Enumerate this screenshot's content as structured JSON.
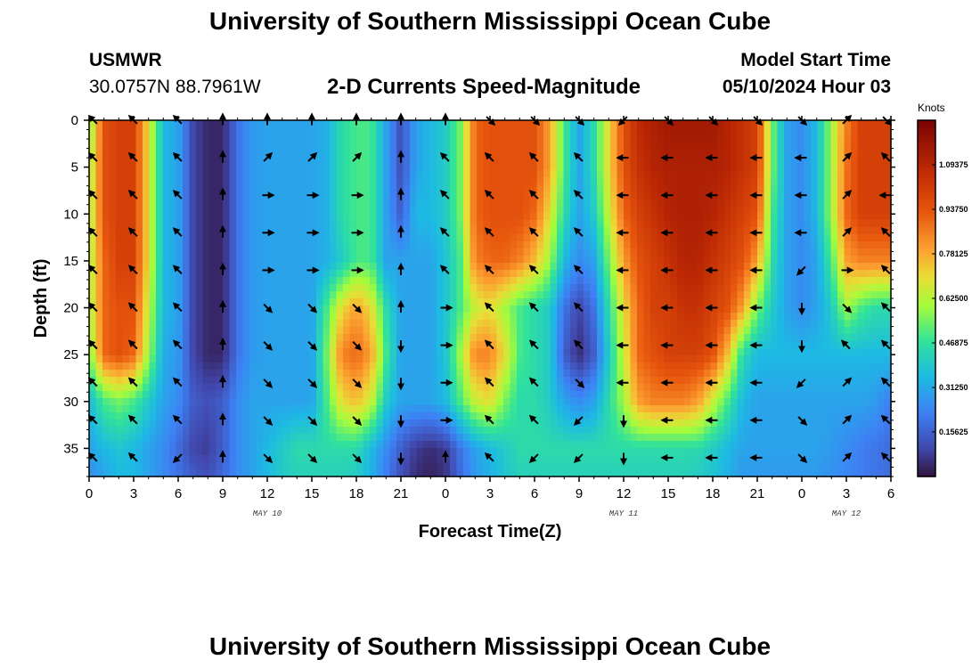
{
  "header": {
    "title": "University of Southern Mississippi Ocean Cube",
    "station": "USMWR",
    "coordinates": "30.0757N  88.7961W",
    "subtitle": "2-D Currents Speed-Magnitude",
    "model_start_label": "Model Start Time",
    "model_start_value": "05/10/2024 Hour 03"
  },
  "footer": {
    "title": "University of Southern Mississippi Ocean Cube"
  },
  "chart_data": {
    "type": "heatmap",
    "title": "2-D Currents Speed-Magnitude",
    "xlabel": "Forecast Time(Z)",
    "ylabel": "Depth (ft)",
    "colorbar_label": "Knots",
    "colorbar_ticks": [
      "0.15625",
      "0.31250",
      "0.46875",
      "0.62500",
      "0.78125",
      "0.93750",
      "1.09375"
    ],
    "colorbar_range": [
      0,
      1.25
    ],
    "xlim": [
      0,
      54
    ],
    "ylim": [
      0,
      38
    ],
    "x_ticks": [
      0,
      3,
      6,
      9,
      12,
      15,
      18,
      21,
      24,
      27,
      30,
      33,
      36,
      39,
      42,
      45,
      48,
      51,
      54
    ],
    "x_tick_labels": [
      "0",
      "3",
      "6",
      "9",
      "12",
      "15",
      "18",
      "21",
      "0",
      "3",
      "6",
      "9",
      "12",
      "15",
      "18",
      "21",
      "0",
      "3",
      "6"
    ],
    "y_ticks": [
      0,
      5,
      10,
      15,
      20,
      25,
      30,
      35
    ],
    "y_tick_labels": [
      "0",
      "5",
      "10",
      "15",
      "20",
      "25",
      "30",
      "35"
    ],
    "date_labels": [
      {
        "x": 12,
        "label": "MAY 10"
      },
      {
        "x": 36,
        "label": "MAY 11"
      },
      {
        "x": 51,
        "label": "MAY 12"
      }
    ],
    "speed_grid": {
      "times": [
        0,
        1,
        2,
        3,
        4,
        5,
        6,
        7,
        8,
        9,
        10,
        11,
        12,
        13,
        14,
        15,
        16,
        17,
        18,
        19,
        20,
        21,
        22,
        23,
        24,
        25,
        26,
        27,
        28,
        29,
        30,
        31,
        32,
        33,
        34,
        35,
        36,
        37,
        38,
        39,
        40,
        41,
        42,
        43,
        44,
        45,
        46,
        47,
        48,
        49,
        50,
        51,
        52,
        53,
        54
      ],
      "depths": [
        0,
        5,
        10,
        15,
        20,
        25,
        30,
        35,
        38
      ],
      "values": [
        [
          0.55,
          0.95,
          1.0,
          1.0,
          0.7,
          0.35,
          0.3,
          0.1,
          0.04,
          0.04,
          0.2,
          0.28,
          0.3,
          0.3,
          0.3,
          0.3,
          0.33,
          0.45,
          0.5,
          0.5,
          0.3,
          0.12,
          0.3,
          0.35,
          0.4,
          0.55,
          0.9,
          0.95,
          0.95,
          0.95,
          0.95,
          0.8,
          0.5,
          0.3,
          0.45,
          0.7,
          0.95,
          1.08,
          1.12,
          1.15,
          1.15,
          1.15,
          1.15,
          1.1,
          1.05,
          1.0,
          0.55,
          0.3,
          0.25,
          0.35,
          0.6,
          0.85,
          1.0,
          1.0,
          1.0
        ],
        [
          0.6,
          0.95,
          1.0,
          1.0,
          0.7,
          0.35,
          0.3,
          0.1,
          0.04,
          0.04,
          0.2,
          0.28,
          0.3,
          0.3,
          0.3,
          0.3,
          0.33,
          0.45,
          0.5,
          0.5,
          0.3,
          0.12,
          0.3,
          0.35,
          0.4,
          0.55,
          0.9,
          0.95,
          0.95,
          0.95,
          0.95,
          0.8,
          0.5,
          0.3,
          0.45,
          0.7,
          0.95,
          1.05,
          1.1,
          1.12,
          1.12,
          1.12,
          1.12,
          1.1,
          1.05,
          1.0,
          0.55,
          0.3,
          0.25,
          0.35,
          0.6,
          0.88,
          1.0,
          1.0,
          1.0
        ],
        [
          0.6,
          0.95,
          1.0,
          1.0,
          0.7,
          0.35,
          0.3,
          0.1,
          0.04,
          0.04,
          0.2,
          0.28,
          0.3,
          0.3,
          0.3,
          0.3,
          0.33,
          0.45,
          0.5,
          0.5,
          0.3,
          0.15,
          0.35,
          0.35,
          0.4,
          0.55,
          0.9,
          0.95,
          0.95,
          0.95,
          0.9,
          0.7,
          0.45,
          0.3,
          0.4,
          0.65,
          0.9,
          1.0,
          1.05,
          1.1,
          1.12,
          1.12,
          1.1,
          1.05,
          1.0,
          0.95,
          0.5,
          0.3,
          0.25,
          0.35,
          0.6,
          0.9,
          1.0,
          1.0,
          1.0
        ],
        [
          0.6,
          0.9,
          1.0,
          1.0,
          0.7,
          0.35,
          0.3,
          0.1,
          0.04,
          0.04,
          0.2,
          0.28,
          0.3,
          0.3,
          0.3,
          0.3,
          0.33,
          0.4,
          0.5,
          0.5,
          0.3,
          0.3,
          0.3,
          0.3,
          0.38,
          0.5,
          0.85,
          0.9,
          0.9,
          0.85,
          0.75,
          0.6,
          0.35,
          0.25,
          0.3,
          0.55,
          0.8,
          0.95,
          1.0,
          1.05,
          1.1,
          1.1,
          1.05,
          1.0,
          0.95,
          0.8,
          0.45,
          0.3,
          0.25,
          0.3,
          0.5,
          0.8,
          0.85,
          0.85,
          0.85
        ],
        [
          0.6,
          0.9,
          0.95,
          0.95,
          0.65,
          0.35,
          0.3,
          0.1,
          0.04,
          0.04,
          0.2,
          0.28,
          0.3,
          0.3,
          0.3,
          0.3,
          0.5,
          0.7,
          0.8,
          0.7,
          0.45,
          0.3,
          0.3,
          0.3,
          0.38,
          0.5,
          0.65,
          0.7,
          0.6,
          0.5,
          0.45,
          0.4,
          0.2,
          0.1,
          0.2,
          0.45,
          0.7,
          0.9,
          1.0,
          1.0,
          1.05,
          1.05,
          1.0,
          0.95,
          0.8,
          0.55,
          0.4,
          0.3,
          0.25,
          0.3,
          0.4,
          0.6,
          0.5,
          0.45,
          0.45
        ],
        [
          0.55,
          0.9,
          0.95,
          0.9,
          0.6,
          0.32,
          0.28,
          0.1,
          0.04,
          0.04,
          0.2,
          0.28,
          0.3,
          0.3,
          0.3,
          0.3,
          0.55,
          0.85,
          0.9,
          0.8,
          0.5,
          0.3,
          0.3,
          0.3,
          0.38,
          0.6,
          0.85,
          0.85,
          0.7,
          0.5,
          0.45,
          0.4,
          0.15,
          0.05,
          0.15,
          0.4,
          0.65,
          0.9,
          0.95,
          1.0,
          1.0,
          1.0,
          0.95,
          0.75,
          0.45,
          0.35,
          0.35,
          0.35,
          0.35,
          0.35,
          0.35,
          0.35,
          0.35,
          0.35,
          0.35
        ],
        [
          0.35,
          0.5,
          0.55,
          0.5,
          0.4,
          0.3,
          0.25,
          0.15,
          0.12,
          0.15,
          0.25,
          0.3,
          0.3,
          0.3,
          0.3,
          0.3,
          0.5,
          0.7,
          0.75,
          0.65,
          0.4,
          0.3,
          0.3,
          0.3,
          0.35,
          0.5,
          0.65,
          0.7,
          0.55,
          0.45,
          0.45,
          0.4,
          0.3,
          0.25,
          0.3,
          0.45,
          0.6,
          0.8,
          0.85,
          0.85,
          0.85,
          0.8,
          0.65,
          0.5,
          0.35,
          0.3,
          0.3,
          0.3,
          0.3,
          0.3,
          0.3,
          0.3,
          0.3,
          0.28,
          0.22
        ],
        [
          0.3,
          0.35,
          0.38,
          0.35,
          0.3,
          0.25,
          0.18,
          0.1,
          0.08,
          0.15,
          0.25,
          0.3,
          0.35,
          0.4,
          0.45,
          0.45,
          0.45,
          0.45,
          0.45,
          0.35,
          0.25,
          0.15,
          0.08,
          0.05,
          0.08,
          0.2,
          0.3,
          0.35,
          0.4,
          0.45,
          0.45,
          0.45,
          0.45,
          0.45,
          0.45,
          0.45,
          0.45,
          0.45,
          0.45,
          0.45,
          0.45,
          0.45,
          0.4,
          0.35,
          0.3,
          0.3,
          0.3,
          0.3,
          0.3,
          0.3,
          0.28,
          0.25,
          0.22,
          0.2,
          0.18
        ],
        [
          0.25,
          0.3,
          0.35,
          0.35,
          0.3,
          0.25,
          0.2,
          0.15,
          0.12,
          0.18,
          0.25,
          0.3,
          0.35,
          0.4,
          0.42,
          0.42,
          0.42,
          0.42,
          0.4,
          0.33,
          0.22,
          0.12,
          0.05,
          0.03,
          0.06,
          0.18,
          0.28,
          0.33,
          0.38,
          0.42,
          0.42,
          0.42,
          0.42,
          0.42,
          0.42,
          0.42,
          0.42,
          0.42,
          0.42,
          0.42,
          0.42,
          0.4,
          0.38,
          0.33,
          0.28,
          0.28,
          0.28,
          0.28,
          0.28,
          0.28,
          0.26,
          0.24,
          0.22,
          0.2,
          0.18
        ]
      ]
    },
    "vector_times": [
      0,
      3,
      6,
      9,
      12,
      15,
      18,
      21,
      24,
      27,
      30,
      33,
      36,
      39,
      42,
      45,
      48,
      51,
      54
    ],
    "vector_depths": [
      0,
      4,
      8,
      12,
      16,
      20,
      24,
      28,
      32,
      36
    ],
    "vector_directions_deg": [
      [
        315,
        315,
        315,
        360,
        0,
        0,
        0,
        360,
        0,
        135,
        135,
        135,
        225,
        135,
        135,
        135,
        135,
        45,
        135
      ],
      [
        315,
        315,
        315,
        360,
        45,
        45,
        45,
        360,
        315,
        315,
        315,
        315,
        270,
        270,
        270,
        270,
        270,
        45,
        315
      ],
      [
        315,
        315,
        315,
        360,
        90,
        90,
        90,
        360,
        315,
        315,
        315,
        315,
        270,
        270,
        270,
        270,
        270,
        45,
        270
      ],
      [
        315,
        315,
        315,
        360,
        90,
        90,
        90,
        360,
        315,
        315,
        315,
        315,
        270,
        270,
        270,
        270,
        270,
        45,
        315
      ],
      [
        315,
        315,
        315,
        360,
        90,
        90,
        90,
        360,
        315,
        315,
        315,
        315,
        270,
        270,
        270,
        270,
        225,
        90,
        315
      ],
      [
        315,
        315,
        315,
        360,
        135,
        135,
        135,
        360,
        90,
        315,
        315,
        315,
        270,
        270,
        270,
        270,
        180,
        135,
        315
      ],
      [
        315,
        315,
        315,
        360,
        135,
        135,
        135,
        180,
        90,
        315,
        315,
        315,
        270,
        270,
        270,
        270,
        180,
        315,
        315
      ],
      [
        315,
        315,
        315,
        360,
        135,
        135,
        135,
        180,
        90,
        315,
        315,
        135,
        270,
        270,
        270,
        270,
        225,
        45,
        315
      ],
      [
        315,
        315,
        315,
        360,
        135,
        135,
        135,
        180,
        90,
        315,
        315,
        225,
        180,
        270,
        270,
        270,
        135,
        45,
        315
      ],
      [
        315,
        315,
        225,
        360,
        135,
        135,
        135,
        180,
        360,
        315,
        225,
        225,
        180,
        270,
        270,
        270,
        135,
        45,
        315
      ]
    ]
  }
}
